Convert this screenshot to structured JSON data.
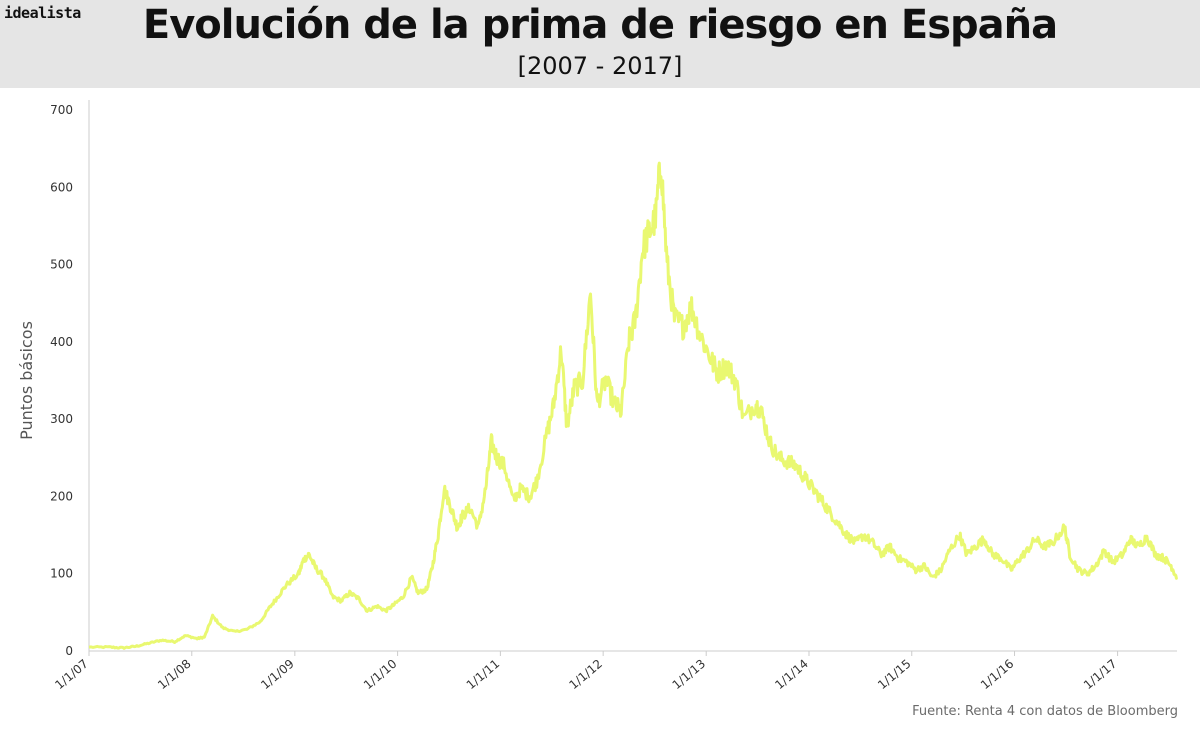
{
  "header": {
    "brand": "idealista",
    "title": "Evolución de la prima de riesgo en España",
    "subtitle": "[2007 - 2017]"
  },
  "footer": {
    "source": "Fuente: Renta 4 con datos de Bloomberg"
  },
  "colors": {
    "line": "#e9f871",
    "axis": "#cccccc",
    "header_bg": "#e5e5e5"
  },
  "chart_data": {
    "type": "line",
    "title": "Evolución de la prima de riesgo en España",
    "subtitle": "[2007 - 2017]",
    "xlabel": "",
    "ylabel": "Puntos básicos",
    "ylim": [
      0,
      700
    ],
    "yticks": [
      0,
      100,
      200,
      300,
      400,
      500,
      600,
      700
    ],
    "xlim": [
      "2007-01-01",
      "2017-07-31"
    ],
    "xticks": [
      {
        "date": "2007-01-01",
        "label": "1/1/07"
      },
      {
        "date": "2008-01-01",
        "label": "1/1/08"
      },
      {
        "date": "2009-01-01",
        "label": "1/1/09"
      },
      {
        "date": "2010-01-01",
        "label": "1/1/10"
      },
      {
        "date": "2011-01-01",
        "label": "1/1/11"
      },
      {
        "date": "2012-01-01",
        "label": "1/1/12"
      },
      {
        "date": "2013-01-01",
        "label": "1/1/13"
      },
      {
        "date": "2014-01-01",
        "label": "1/1/14"
      },
      {
        "date": "2015-01-01",
        "label": "1/1/15"
      },
      {
        "date": "2016-01-01",
        "label": "1/1/16"
      },
      {
        "date": "2017-01-01",
        "label": "1/1/17"
      }
    ],
    "grid": false,
    "legend": "none",
    "series": [
      {
        "points": [
          [
            "2007-01-01",
            5
          ],
          [
            "2007-03-15",
            5
          ],
          [
            "2007-05-01",
            4
          ],
          [
            "2007-06-15",
            6
          ],
          [
            "2007-08-01",
            10
          ],
          [
            "2007-09-15",
            14
          ],
          [
            "2007-11-01",
            12
          ],
          [
            "2007-12-10",
            20
          ],
          [
            "2008-01-20",
            16
          ],
          [
            "2008-02-15",
            18
          ],
          [
            "2008-03-15",
            45
          ],
          [
            "2008-04-20",
            30
          ],
          [
            "2008-06-01",
            25
          ],
          [
            "2008-07-15",
            28
          ],
          [
            "2008-09-01",
            38
          ],
          [
            "2008-10-01",
            55
          ],
          [
            "2008-11-01",
            70
          ],
          [
            "2008-12-01",
            85
          ],
          [
            "2009-01-15",
            100
          ],
          [
            "2009-02-01",
            118
          ],
          [
            "2009-02-20",
            125
          ],
          [
            "2009-03-15",
            108
          ],
          [
            "2009-04-15",
            95
          ],
          [
            "2009-05-15",
            70
          ],
          [
            "2009-06-15",
            65
          ],
          [
            "2009-07-15",
            75
          ],
          [
            "2009-08-15",
            68
          ],
          [
            "2009-09-15",
            52
          ],
          [
            "2009-10-20",
            58
          ],
          [
            "2009-11-20",
            52
          ],
          [
            "2009-12-20",
            60
          ],
          [
            "2010-01-20",
            70
          ],
          [
            "2010-02-20",
            95
          ],
          [
            "2010-03-15",
            75
          ],
          [
            "2010-04-15",
            80
          ],
          [
            "2010-05-05",
            110
          ],
          [
            "2010-05-25",
            150
          ],
          [
            "2010-06-15",
            210
          ],
          [
            "2010-07-10",
            185
          ],
          [
            "2010-08-01",
            160
          ],
          [
            "2010-08-20",
            175
          ],
          [
            "2010-09-15",
            185
          ],
          [
            "2010-10-15",
            160
          ],
          [
            "2010-11-10",
            210
          ],
          [
            "2010-11-30",
            270
          ],
          [
            "2010-12-20",
            250
          ],
          [
            "2011-01-15",
            240
          ],
          [
            "2011-02-15",
            195
          ],
          [
            "2011-03-15",
            210
          ],
          [
            "2011-04-15",
            200
          ],
          [
            "2011-05-10",
            220
          ],
          [
            "2011-06-15",
            280
          ],
          [
            "2011-07-10",
            320
          ],
          [
            "2011-08-05",
            390
          ],
          [
            "2011-08-25",
            290
          ],
          [
            "2011-09-20",
            340
          ],
          [
            "2011-10-20",
            350
          ],
          [
            "2011-11-17",
            465
          ],
          [
            "2011-12-10",
            320
          ],
          [
            "2012-01-10",
            350
          ],
          [
            "2012-02-10",
            320
          ],
          [
            "2012-03-05",
            310
          ],
          [
            "2012-04-01",
            400
          ],
          [
            "2012-04-25",
            430
          ],
          [
            "2012-05-20",
            520
          ],
          [
            "2012-06-10",
            540
          ],
          [
            "2012-07-05",
            560
          ],
          [
            "2012-07-24",
            635
          ],
          [
            "2012-08-15",
            500
          ],
          [
            "2012-09-10",
            430
          ],
          [
            "2012-10-10",
            420
          ],
          [
            "2012-11-10",
            445
          ],
          [
            "2012-12-10",
            410
          ],
          [
            "2013-01-15",
            380
          ],
          [
            "2013-02-10",
            360
          ],
          [
            "2013-03-15",
            370
          ],
          [
            "2013-04-15",
            350
          ],
          [
            "2013-05-15",
            300
          ],
          [
            "2013-06-25",
            320
          ],
          [
            "2013-07-15",
            310
          ],
          [
            "2013-08-15",
            270
          ],
          [
            "2013-09-15",
            250
          ],
          [
            "2013-10-15",
            245
          ],
          [
            "2013-11-15",
            240
          ],
          [
            "2013-12-15",
            225
          ],
          [
            "2014-01-15",
            210
          ],
          [
            "2014-02-15",
            195
          ],
          [
            "2014-03-15",
            180
          ],
          [
            "2014-04-15",
            165
          ],
          [
            "2014-05-15",
            150
          ],
          [
            "2014-06-15",
            140
          ],
          [
            "2014-07-15",
            150
          ],
          [
            "2014-08-15",
            140
          ],
          [
            "2014-09-15",
            125
          ],
          [
            "2014-10-15",
            135
          ],
          [
            "2014-11-15",
            120
          ],
          [
            "2014-12-15",
            115
          ],
          [
            "2015-01-15",
            105
          ],
          [
            "2015-02-15",
            110
          ],
          [
            "2015-03-15",
            95
          ],
          [
            "2015-04-15",
            105
          ],
          [
            "2015-05-15",
            130
          ],
          [
            "2015-06-20",
            150
          ],
          [
            "2015-07-15",
            125
          ],
          [
            "2015-08-15",
            135
          ],
          [
            "2015-09-15",
            145
          ],
          [
            "2015-10-15",
            125
          ],
          [
            "2015-11-15",
            120
          ],
          [
            "2015-12-20",
            105
          ],
          [
            "2016-01-20",
            120
          ],
          [
            "2016-02-15",
            130
          ],
          [
            "2016-03-15",
            145
          ],
          [
            "2016-04-15",
            135
          ],
          [
            "2016-05-15",
            140
          ],
          [
            "2016-06-27",
            160
          ],
          [
            "2016-07-15",
            125
          ],
          [
            "2016-08-15",
            105
          ],
          [
            "2016-09-15",
            100
          ],
          [
            "2016-10-15",
            110
          ],
          [
            "2016-11-15",
            130
          ],
          [
            "2016-12-15",
            115
          ],
          [
            "2017-01-20",
            125
          ],
          [
            "2017-02-15",
            145
          ],
          [
            "2017-03-15",
            135
          ],
          [
            "2017-04-15",
            148
          ],
          [
            "2017-05-15",
            125
          ],
          [
            "2017-06-15",
            120
          ],
          [
            "2017-07-10",
            110
          ],
          [
            "2017-07-31",
            95
          ]
        ]
      }
    ]
  }
}
